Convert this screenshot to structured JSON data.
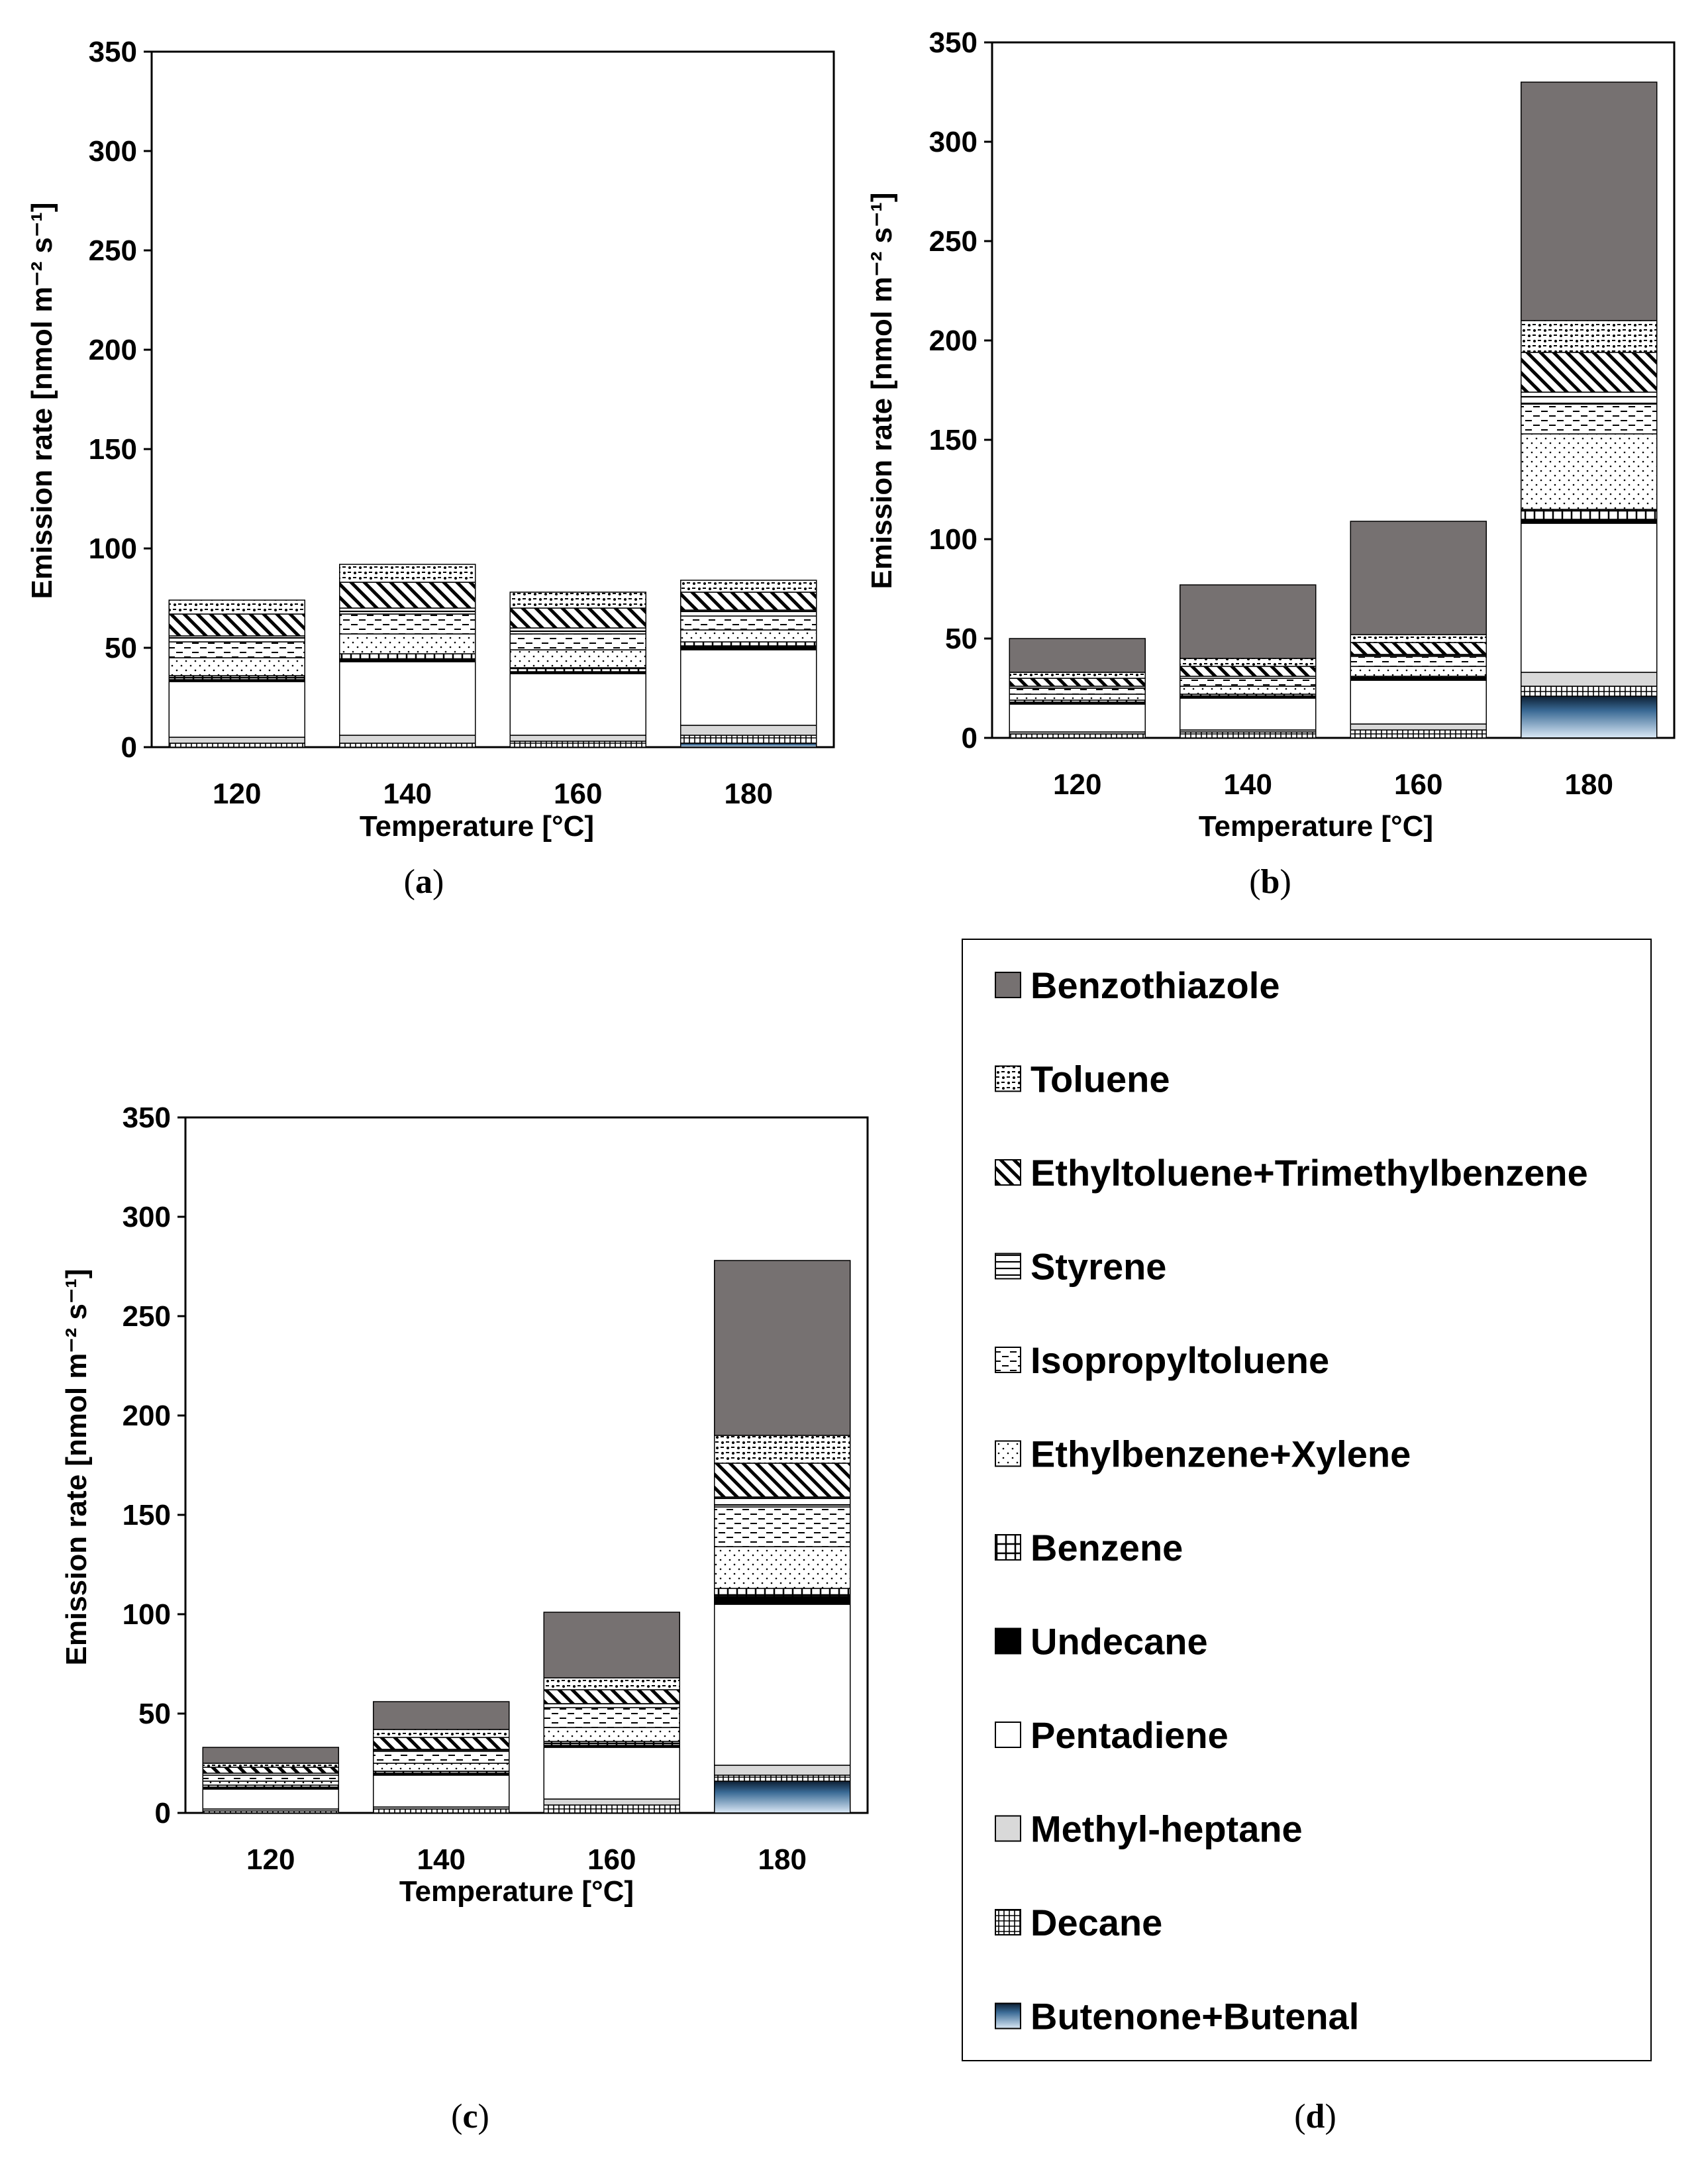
{
  "legend": [
    {
      "key": "benzothiazole",
      "label": "Benzothiazole"
    },
    {
      "key": "toluene",
      "label": "Toluene"
    },
    {
      "key": "ethyltoluene",
      "label": "Ethyltoluene+Trimethylbenzene"
    },
    {
      "key": "styrene",
      "label": "Styrene"
    },
    {
      "key": "isopropyltoluene",
      "label": "Isopropyltoluene"
    },
    {
      "key": "ethylbenzene",
      "label": "Ethylbenzene+Xylene"
    },
    {
      "key": "benzene",
      "label": "Benzene"
    },
    {
      "key": "undecane",
      "label": "Undecane"
    },
    {
      "key": "pentadiene",
      "label": "Pentadiene"
    },
    {
      "key": "methylheptane",
      "label": "Methyl-heptane"
    },
    {
      "key": "decane",
      "label": "Decane"
    },
    {
      "key": "butenone",
      "label": "Butenone+Butenal"
    }
  ],
  "legend_caption": {
    "open": "(",
    "letter": "d",
    "close": ")"
  },
  "chart_data": [
    {
      "id": "a",
      "type": "bar",
      "stacked": true,
      "caption": {
        "open": "(",
        "letter": "a",
        "close": ")"
      },
      "xlabel": "Temperature [°C]",
      "ylabel": "Emission rate [nmol m⁻² s⁻¹]",
      "ylim": [
        0,
        350
      ],
      "yticks": [
        "0",
        "50",
        "100",
        "150",
        "200",
        "250",
        "300",
        "350"
      ],
      "categories": [
        "120",
        "140",
        "160",
        "180"
      ],
      "series": [
        {
          "name": "Butenone+Butenal",
          "values": [
            0,
            0,
            0,
            2
          ]
        },
        {
          "name": "Decane",
          "values": [
            2,
            2,
            3,
            4
          ]
        },
        {
          "name": "Methyl-heptane",
          "values": [
            3,
            4,
            3,
            5
          ]
        },
        {
          "name": "Pentadiene",
          "values": [
            28,
            37,
            31,
            38
          ]
        },
        {
          "name": "Undecane",
          "values": [
            1,
            1,
            1,
            2
          ]
        },
        {
          "name": "Benzene",
          "values": [
            2,
            3,
            2,
            2
          ]
        },
        {
          "name": "Ethylbenzene+Xylene",
          "values": [
            9,
            10,
            9,
            6
          ]
        },
        {
          "name": "Isopropyltoluene",
          "values": [
            8,
            10,
            8,
            7
          ]
        },
        {
          "name": "Styrene",
          "values": [
            3,
            3,
            3,
            3
          ]
        },
        {
          "name": "Ethyltoluene+Trimethylbenzene",
          "values": [
            11,
            13,
            10,
            9
          ]
        },
        {
          "name": "Toluene",
          "values": [
            7,
            9,
            8,
            6
          ]
        },
        {
          "name": "Benzothiazole",
          "values": [
            0,
            0,
            0,
            0
          ]
        }
      ]
    },
    {
      "id": "b",
      "type": "bar",
      "stacked": true,
      "caption": {
        "open": "(",
        "letter": "b",
        "close": ")"
      },
      "xlabel": "Temperature [°C]",
      "ylabel": "Emission rate [nmol m⁻² s⁻¹]",
      "ylim": [
        0,
        350
      ],
      "yticks": [
        "0",
        "50",
        "100",
        "150",
        "200",
        "250",
        "300",
        "350"
      ],
      "categories": [
        "120",
        "140",
        "160",
        "180"
      ],
      "series": [
        {
          "name": "Butenone+Butenal",
          "values": [
            0,
            0,
            0,
            21
          ]
        },
        {
          "name": "Decane",
          "values": [
            2,
            3,
            4,
            5
          ]
        },
        {
          "name": "Methyl-heptane",
          "values": [
            1,
            1,
            3,
            7
          ]
        },
        {
          "name": "Pentadiene",
          "values": [
            14,
            16,
            22,
            75
          ]
        },
        {
          "name": "Undecane",
          "values": [
            1,
            1,
            1,
            2
          ]
        },
        {
          "name": "Benzene",
          "values": [
            1,
            1,
            1,
            5
          ]
        },
        {
          "name": "Ethylbenzene+Xylene",
          "values": [
            3,
            4,
            5,
            38
          ]
        },
        {
          "name": "Isopropyltoluene",
          "values": [
            3,
            4,
            5,
            15
          ]
        },
        {
          "name": "Styrene",
          "values": [
            1,
            1,
            1,
            6
          ]
        },
        {
          "name": "Ethyltoluene+Trimethylbenzene",
          "values": [
            4,
            5,
            6,
            20
          ]
        },
        {
          "name": "Toluene",
          "values": [
            3,
            4,
            4,
            16
          ]
        },
        {
          "name": "Benzothiazole",
          "values": [
            17,
            37,
            57,
            120
          ]
        }
      ]
    },
    {
      "id": "c",
      "type": "bar",
      "stacked": true,
      "caption": {
        "open": "(",
        "letter": "c",
        "close": ")"
      },
      "xlabel": "Temperature [°C]",
      "ylabel": "Emission rate [nmol m⁻² s⁻¹]",
      "ylim": [
        0,
        350
      ],
      "yticks": [
        "0",
        "50",
        "100",
        "150",
        "200",
        "250",
        "300",
        "350"
      ],
      "categories": [
        "120",
        "140",
        "160",
        "180"
      ],
      "series": [
        {
          "name": "Butenone+Butenal",
          "values": [
            0,
            0,
            0,
            16
          ]
        },
        {
          "name": "Decane",
          "values": [
            1,
            2,
            4,
            3
          ]
        },
        {
          "name": "Methyl-heptane",
          "values": [
            1,
            1,
            3,
            5
          ]
        },
        {
          "name": "Pentadiene",
          "values": [
            10,
            16,
            26,
            81
          ]
        },
        {
          "name": "Undecane",
          "values": [
            1,
            1,
            1,
            4
          ]
        },
        {
          "name": "Benzene",
          "values": [
            1,
            1,
            2,
            4
          ]
        },
        {
          "name": "Ethylbenzene+Xylene",
          "values": [
            2,
            4,
            7,
            21
          ]
        },
        {
          "name": "Isopropyltoluene",
          "values": [
            3,
            6,
            10,
            20
          ]
        },
        {
          "name": "Styrene",
          "values": [
            1,
            1,
            2,
            5
          ]
        },
        {
          "name": "Ethyltoluene+Trimethylbenzene",
          "values": [
            3,
            6,
            7,
            17
          ]
        },
        {
          "name": "Toluene",
          "values": [
            2,
            4,
            6,
            14
          ]
        },
        {
          "name": "Benzothiazole",
          "values": [
            8,
            14,
            33,
            88
          ]
        }
      ]
    }
  ]
}
